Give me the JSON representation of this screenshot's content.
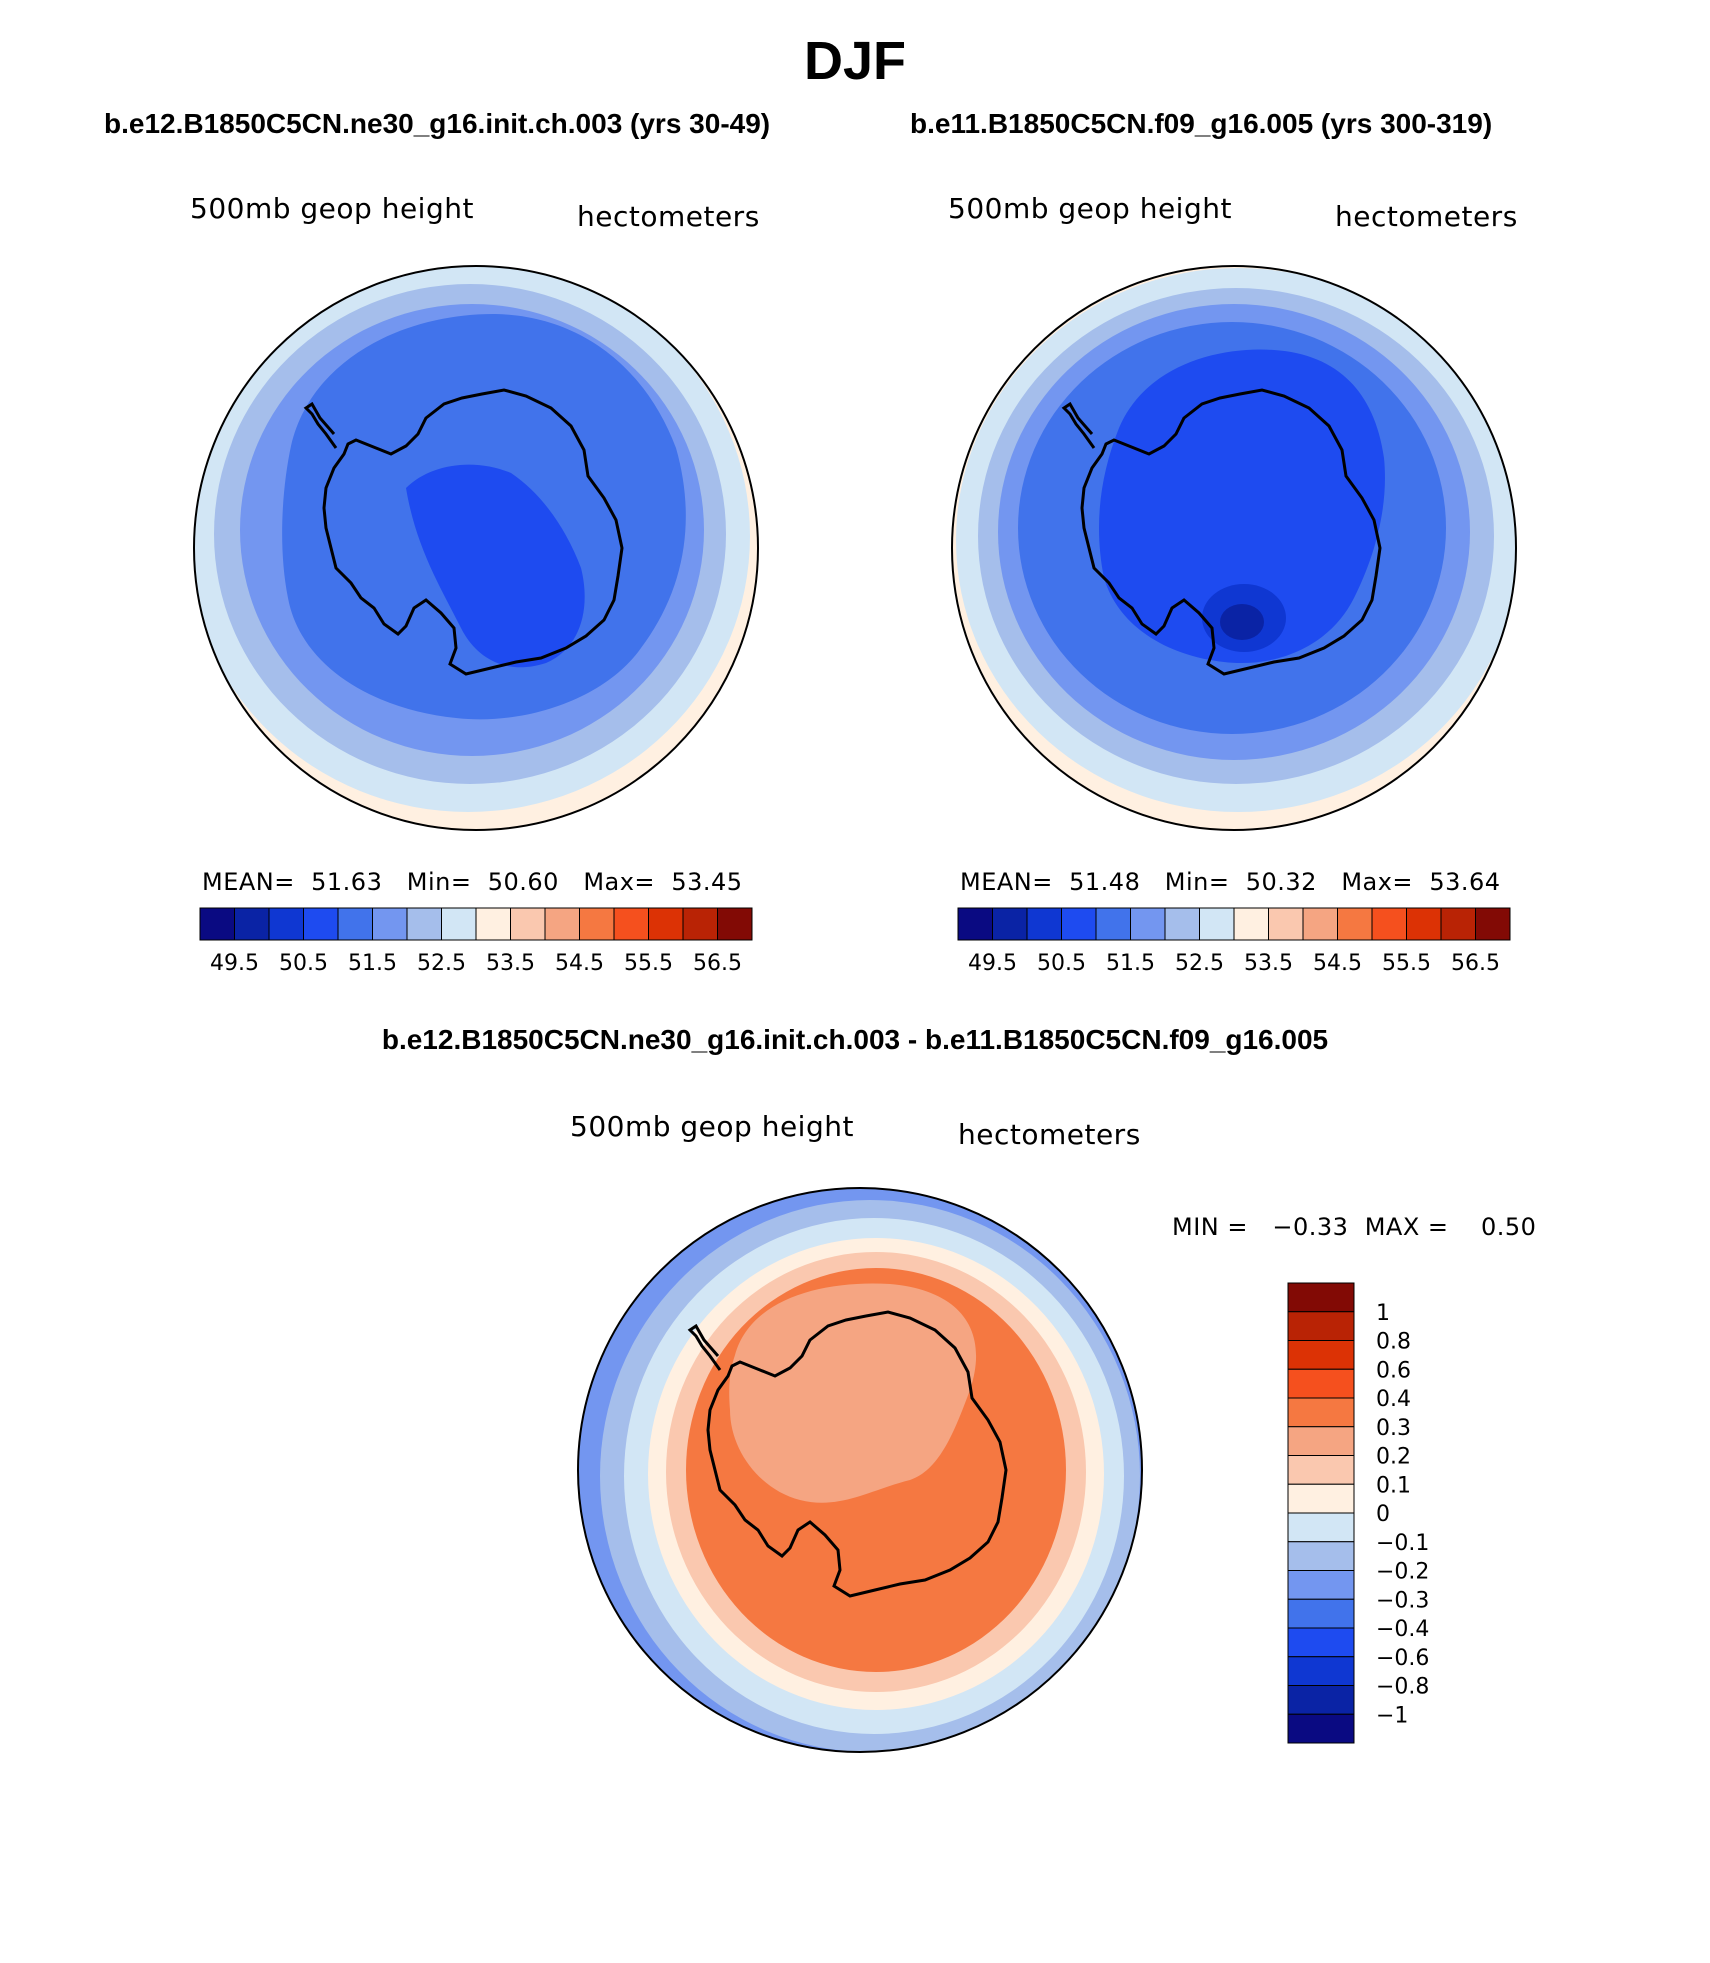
{
  "figure": {
    "season": "DJF",
    "left_run_title": "b.e12.B1850C5CN.ne30_g16.init.ch.003 (yrs 30-49)",
    "right_run_title": "b.e11.B1850C5CN.f09_g16.005 (yrs 300-319)",
    "diff_title": "b.e12.B1850C5CN.ne30_g16.init.ch.003 - b.e11.B1850C5CN.f09_g16.005"
  },
  "panels": [
    {
      "variable_label": "500mb geop height",
      "units_label": "hectometers",
      "mean_label": "MEAN=",
      "mean": "51.63",
      "min_label": "Min=",
      "min": "50.60",
      "max_label": "Max=",
      "max": "53.45"
    },
    {
      "variable_label": "500mb geop height",
      "units_label": "hectometers",
      "mean_label": "MEAN=",
      "mean": "51.48",
      "min_label": "Min=",
      "min": "50.32",
      "max_label": "Max=",
      "max": "53.64"
    }
  ],
  "diff_panel": {
    "variable_label": "500mb geop height",
    "units_label": "hectometers",
    "min_label": "MIN =",
    "min": "−0.33",
    "max_label": "MAX =",
    "max": "0.50"
  },
  "colorbar_main": {
    "colors": [
      "#0a0a82",
      "#0a23a5",
      "#0f37d2",
      "#1e4bf0",
      "#4173eb",
      "#7396f0",
      "#a5beeb",
      "#d2e6f5",
      "#fff0e1",
      "#fac8af",
      "#f5a582",
      "#f57841",
      "#f5501e",
      "#dc3205",
      "#b92305",
      "#820a05"
    ],
    "ticks": [
      "49.5",
      "50.5",
      "51.5",
      "52.5",
      "53.5",
      "54.5",
      "55.5",
      "56.5"
    ]
  },
  "colorbar_diff": {
    "colors": [
      "#820a05",
      "#b92305",
      "#dc3205",
      "#f5501e",
      "#f57841",
      "#f5a582",
      "#fac8af",
      "#fff0e1",
      "#d2e6f5",
      "#a5beeb",
      "#7396f0",
      "#4173eb",
      "#1e4bf0",
      "#0f37d2",
      "#0a23a5",
      "#0a0a82"
    ],
    "ticks": [
      "1",
      "0.8",
      "0.6",
      "0.4",
      "0.3",
      "0.2",
      "0.1",
      "0",
      "−0.1",
      "−0.2",
      "−0.3",
      "−0.4",
      "−0.6",
      "−0.8",
      "−1"
    ]
  }
}
